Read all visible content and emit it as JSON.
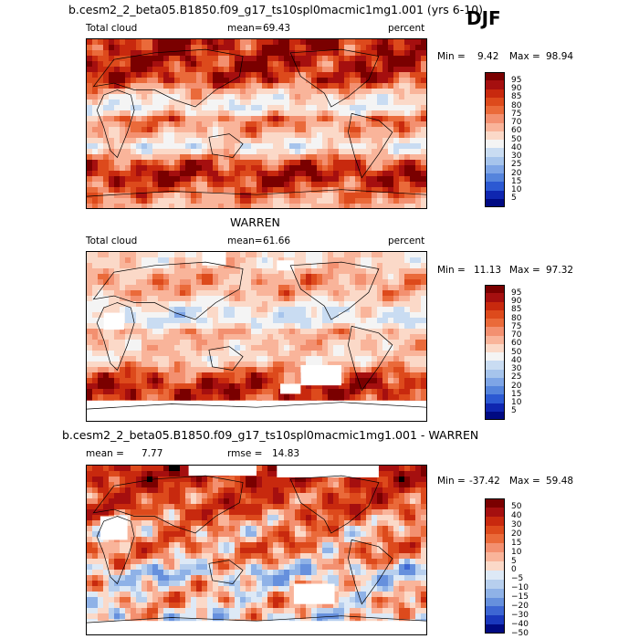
{
  "season": "DJF",
  "panels": [
    {
      "id": "model",
      "heading": "b.cesm2_2_beta05.B1850.f09_g17_ts10spl0macmic1mg1.001 (yrs 6-10)",
      "left_label": "Total cloud",
      "mean_label": "mean=",
      "mean_value": "69.43",
      "units": "percent",
      "min_label": "Min =",
      "min_value": "9.42",
      "max_label": "Max =",
      "max_value": "98.94",
      "colorbar": {
        "levels": [
          "95",
          "90",
          "85",
          "80",
          "75",
          "70",
          "60",
          "50",
          "40",
          "30",
          "25",
          "20",
          "15",
          "10",
          "5"
        ]
      }
    },
    {
      "id": "obs",
      "heading": "WARREN",
      "left_label": "Total cloud",
      "mean_label": "mean=",
      "mean_value": "61.66",
      "units": "percent",
      "min_label": "Min =",
      "min_value": "11.13",
      "max_label": "Max =",
      "max_value": "97.32",
      "colorbar": {
        "levels": [
          "95",
          "90",
          "85",
          "80",
          "75",
          "70",
          "60",
          "50",
          "40",
          "30",
          "25",
          "20",
          "15",
          "10",
          "5"
        ]
      }
    },
    {
      "id": "diff",
      "heading": "b.cesm2_2_beta05.B1850.f09_g17_ts10spl0macmic1mg1.001 - WARREN",
      "mean_label": "mean =",
      "mean_value": "7.77",
      "rmse_label": "rmse =",
      "rmse_value": "14.83",
      "min_label": "Min =",
      "min_value": "-37.42",
      "max_label": "Max =",
      "max_value": "59.48",
      "colorbar": {
        "levels": [
          "50",
          "40",
          "30",
          "20",
          "15",
          "10",
          "5",
          "0",
          "−5",
          "−10",
          "−15",
          "−20",
          "−30",
          "−40",
          "−50"
        ]
      }
    }
  ],
  "colors": {
    "abs_scale": [
      "#7a0000",
      "#a50f0f",
      "#c8290e",
      "#dd4a1c",
      "#ea6a3a",
      "#f39070",
      "#f9b49a",
      "#fbd9c8",
      "#f4f4f4",
      "#c9dcf2",
      "#a6c4ec",
      "#7ea5e6",
      "#5584dc",
      "#2c59d2",
      "#0f26b0",
      "#000a82"
    ],
    "diff_scale": [
      "#7a0000",
      "#a50f0f",
      "#c8290e",
      "#dd4a1c",
      "#ea6a3a",
      "#f39070",
      "#f9b49a",
      "#fbd9c8",
      "#dde9f6",
      "#b7cfee",
      "#8fb2e7",
      "#6690dd",
      "#3d66d3",
      "#1a38bd",
      "#000a82"
    ]
  },
  "chart_data": [
    {
      "type": "heatmap",
      "title": "b.cesm2_2_beta05.B1850.f09_g17_ts10spl0macmic1mg1.001 (yrs 6-10)",
      "variable": "Total cloud",
      "units": "percent",
      "season": "DJF",
      "mean": 69.43,
      "min": 9.42,
      "max": 98.94,
      "contour_levels": [
        5,
        10,
        15,
        20,
        25,
        30,
        40,
        50,
        60,
        70,
        75,
        80,
        85,
        90,
        95
      ],
      "zonal_bands": [
        {
          "lat": 80,
          "value": 90
        },
        {
          "lat": 60,
          "value": 88
        },
        {
          "lat": 45,
          "value": 85
        },
        {
          "lat": 30,
          "value": 55
        },
        {
          "lat": 15,
          "value": 45
        },
        {
          "lat": 5,
          "value": 75
        },
        {
          "lat": -10,
          "value": 65
        },
        {
          "lat": -25,
          "value": 45
        },
        {
          "lat": -40,
          "value": 80
        },
        {
          "lat": -55,
          "value": 92
        },
        {
          "lat": -70,
          "value": 80
        },
        {
          "lat": -85,
          "value": 65
        }
      ]
    },
    {
      "type": "heatmap",
      "title": "WARREN",
      "variable": "Total cloud",
      "units": "percent",
      "season": "DJF",
      "mean": 61.66,
      "min": 11.13,
      "max": 97.32,
      "contour_levels": [
        5,
        10,
        15,
        20,
        25,
        30,
        40,
        50,
        60,
        70,
        75,
        80,
        85,
        90,
        95
      ],
      "zonal_bands": [
        {
          "lat": 80,
          "value": 55
        },
        {
          "lat": 60,
          "value": 70
        },
        {
          "lat": 45,
          "value": 65
        },
        {
          "lat": 30,
          "value": 45
        },
        {
          "lat": 15,
          "value": 40
        },
        {
          "lat": 5,
          "value": 65
        },
        {
          "lat": -10,
          "value": 60
        },
        {
          "lat": -25,
          "value": 55
        },
        {
          "lat": -40,
          "value": 80
        },
        {
          "lat": -55,
          "value": 90
        },
        {
          "lat": -70,
          "value": 85
        },
        {
          "lat": -85,
          "value": 70
        }
      ]
    },
    {
      "type": "heatmap",
      "title": "b.cesm2_2_beta05.B1850.f09_g17_ts10spl0macmic1mg1.001 - WARREN",
      "variable": "Total cloud difference",
      "season": "DJF",
      "mean": 7.77,
      "rmse": 14.83,
      "min": -37.42,
      "max": 59.48,
      "contour_levels": [
        -50,
        -40,
        -30,
        -20,
        -15,
        -10,
        -5,
        0,
        5,
        10,
        15,
        20,
        30,
        40,
        50
      ],
      "zonal_bands": [
        {
          "lat": 80,
          "value": 30
        },
        {
          "lat": 60,
          "value": 18
        },
        {
          "lat": 45,
          "value": 20
        },
        {
          "lat": 30,
          "value": 8
        },
        {
          "lat": 15,
          "value": 5
        },
        {
          "lat": 5,
          "value": 10
        },
        {
          "lat": -10,
          "value": 5
        },
        {
          "lat": -25,
          "value": -12
        },
        {
          "lat": -40,
          "value": 0
        },
        {
          "lat": -55,
          "value": 4
        },
        {
          "lat": -70,
          "value": -5
        },
        {
          "lat": -85,
          "value": -5
        }
      ]
    }
  ]
}
